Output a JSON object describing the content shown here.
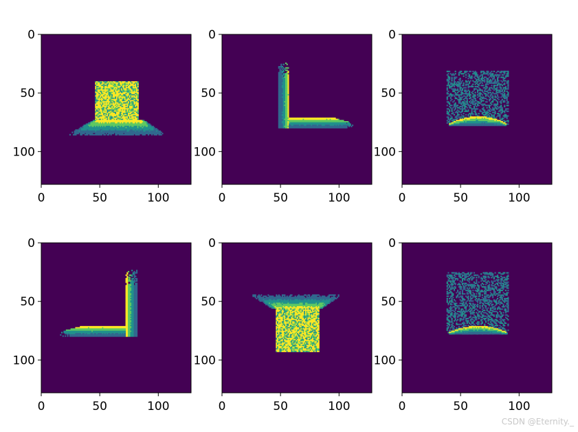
{
  "chart_data": [
    {
      "type": "heatmap",
      "title": "",
      "xlabel": "",
      "ylabel": "",
      "xlim": [
        0,
        128
      ],
      "ylim": [
        128,
        0
      ],
      "xticks": [
        0,
        50,
        100
      ],
      "yticks": [
        0,
        50,
        100
      ],
      "shapes": [
        {
          "kind": "rect-noise",
          "x": [
            46,
            83
          ],
          "y": [
            40,
            73
          ]
        },
        {
          "kind": "trapezoid-gradient-down",
          "top_y": 73,
          "bottom_y": 86,
          "top_x": [
            44,
            88
          ],
          "bottom_x": [
            21,
            107
          ]
        }
      ]
    },
    {
      "type": "heatmap",
      "title": "",
      "xlabel": "",
      "ylabel": "",
      "xlim": [
        0,
        128
      ],
      "ylim": [
        128,
        0
      ],
      "xticks": [
        0,
        50,
        100
      ],
      "yticks": [
        0,
        50,
        100
      ],
      "shapes": [
        {
          "kind": "vertical-bar-gradient",
          "x": [
            48,
            57
          ],
          "y": [
            22,
            80
          ]
        },
        {
          "kind": "horizontal-bar-gradient",
          "x": [
            57,
            113
          ],
          "y": [
            71,
            80
          ]
        }
      ]
    },
    {
      "type": "heatmap",
      "title": "",
      "xlabel": "",
      "ylabel": "",
      "xlim": [
        0,
        128
      ],
      "ylim": [
        128,
        0
      ],
      "xticks": [
        0,
        50,
        100
      ],
      "yticks": [
        0,
        50,
        100
      ],
      "shapes": [
        {
          "kind": "rect-sparse-noise",
          "x": [
            38,
            91
          ],
          "y": [
            31,
            77
          ]
        },
        {
          "kind": "arc-gradient",
          "x": [
            40,
            89
          ],
          "y": [
            70,
            78
          ]
        }
      ]
    },
    {
      "type": "heatmap",
      "title": "",
      "xlabel": "",
      "ylabel": "",
      "xlim": [
        0,
        128
      ],
      "ylim": [
        128,
        0
      ],
      "xticks": [
        0,
        50,
        100
      ],
      "yticks": [
        0,
        50,
        100
      ],
      "shapes": [
        {
          "kind": "vertical-bar-gradient-right",
          "x": [
            72,
            82
          ],
          "y": [
            22,
            80
          ]
        },
        {
          "kind": "horizontal-bar-gradient-left",
          "x": [
            15,
            72
          ],
          "y": [
            71,
            80
          ]
        }
      ]
    },
    {
      "type": "heatmap",
      "title": "",
      "xlabel": "",
      "ylabel": "",
      "xlim": [
        0,
        128
      ],
      "ylim": [
        128,
        0
      ],
      "xticks": [
        0,
        50,
        100
      ],
      "yticks": [
        0,
        50,
        100
      ],
      "shapes": [
        {
          "kind": "trapezoid-gradient-up",
          "top_y": 44,
          "bottom_y": 56,
          "top_x": [
            25,
            102
          ],
          "bottom_x": [
            44,
            84
          ]
        },
        {
          "kind": "rect-noise",
          "x": [
            46,
            83
          ],
          "y": [
            56,
            93
          ]
        }
      ]
    },
    {
      "type": "heatmap",
      "title": "",
      "xlabel": "",
      "ylabel": "",
      "xlim": [
        0,
        128
      ],
      "ylim": [
        128,
        0
      ],
      "xticks": [
        0,
        50,
        100
      ],
      "yticks": [
        0,
        50,
        100
      ],
      "shapes": [
        {
          "kind": "rect-sparse-noise",
          "x": [
            38,
            91
          ],
          "y": [
            25,
            78
          ]
        },
        {
          "kind": "arc-gradient",
          "x": [
            40,
            89
          ],
          "y": [
            71,
            78
          ]
        }
      ]
    }
  ],
  "colors": {
    "background": "#440154",
    "low": "#31688e",
    "mid": "#21918c",
    "high": "#5ec962",
    "top": "#fde725"
  },
  "tick_labels": {
    "x": [
      "0",
      "50",
      "100"
    ],
    "y": [
      "0",
      "50",
      "100"
    ]
  },
  "watermark": "CSDN @Eternity._"
}
